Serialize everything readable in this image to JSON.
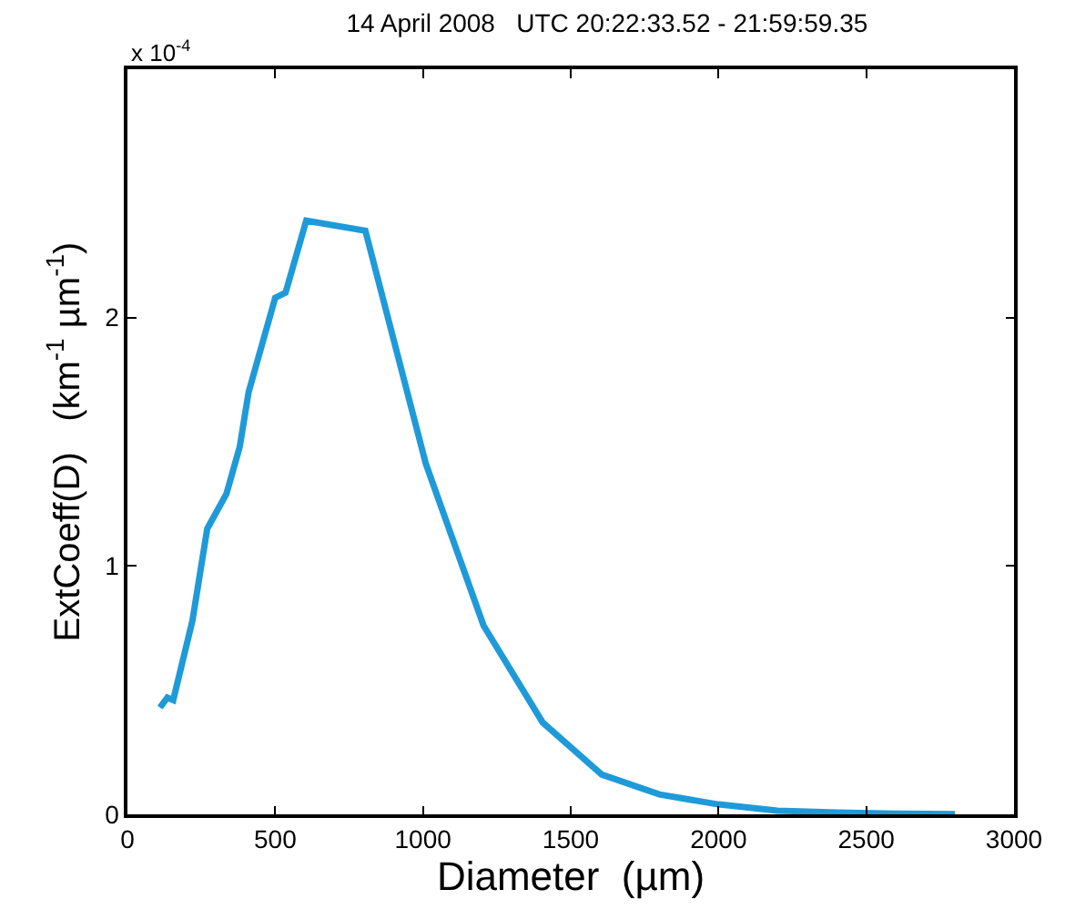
{
  "chart_data": {
    "type": "line",
    "title": "14 April 2008   UTC 20:22:33.52 - 21:59:59.35",
    "xlabel": "Diameter  (µm)",
    "ylabel": "ExtCoeff(D)   (km$^{-1}$ µm$^{-1}$)",
    "annotations": [
      "x 10$^{-4}$"
    ],
    "x": [
      110,
      135,
      155,
      220,
      270,
      335,
      380,
      410,
      500,
      535,
      605,
      805,
      1010,
      1205,
      1405,
      1605,
      1800,
      2000,
      2200,
      2400,
      2600,
      2800
    ],
    "series": [
      {
        "color": "#1f9ad9",
        "values": [
          0.43,
          0.47,
          0.46,
          0.78,
          1.15,
          1.29,
          1.48,
          1.7,
          2.08,
          2.1,
          2.39,
          2.35,
          1.41,
          0.76,
          0.37,
          0.16,
          0.08,
          0.04,
          0.015,
          0.007,
          0.003,
          0.001
        ]
      }
    ],
    "xlim": [
      0,
      3000
    ],
    "xticks": [
      0,
      500,
      1000,
      1500,
      2000,
      2500,
      3000
    ],
    "ylim": [
      0,
      3
    ],
    "yticks": [
      0,
      1,
      2
    ],
    "marker": "none",
    "line_style": "solid"
  }
}
